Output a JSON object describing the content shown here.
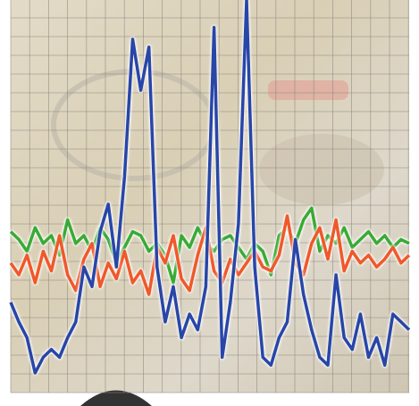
{
  "chart_data": {
    "type": "line",
    "ylim": [
      0,
      100
    ],
    "series": [
      {
        "color": "#2846a8",
        "values": [
          23,
          18,
          14,
          5,
          9,
          11,
          9,
          14,
          18,
          32,
          27,
          41,
          48,
          32,
          55,
          90,
          77,
          88,
          32,
          18,
          27,
          14,
          20,
          16,
          27,
          93,
          9,
          23,
          43,
          100,
          32,
          9,
          7,
          14,
          18,
          39,
          25,
          16,
          9,
          7,
          30,
          14,
          11,
          20,
          9,
          14,
          7,
          20,
          18,
          16
        ]
      },
      {
        "color": "#f0582a",
        "values": [
          33,
          30,
          35,
          28,
          36,
          31,
          40,
          30,
          26,
          34,
          38,
          27,
          33,
          29,
          36,
          28,
          31,
          25,
          37,
          33,
          40,
          29,
          26,
          35,
          42,
          31,
          28,
          34,
          30,
          33,
          36,
          32,
          31,
          35,
          45,
          33,
          30,
          38,
          42,
          34,
          44,
          31,
          36,
          33,
          35,
          32,
          34,
          37,
          33,
          35
        ]
      },
      {
        "color": "#3aaa35",
        "values": [
          41,
          39,
          36,
          42,
          38,
          40,
          35,
          44,
          38,
          40,
          36,
          42,
          39,
          33,
          37,
          41,
          40,
          36,
          38,
          35,
          28,
          40,
          37,
          42,
          38,
          36,
          39,
          40,
          37,
          34,
          38,
          36,
          30,
          40,
          42,
          38,
          44,
          47,
          36,
          40,
          38,
          42,
          37,
          39,
          41,
          38,
          40,
          37,
          39,
          38
        ]
      }
    ]
  }
}
